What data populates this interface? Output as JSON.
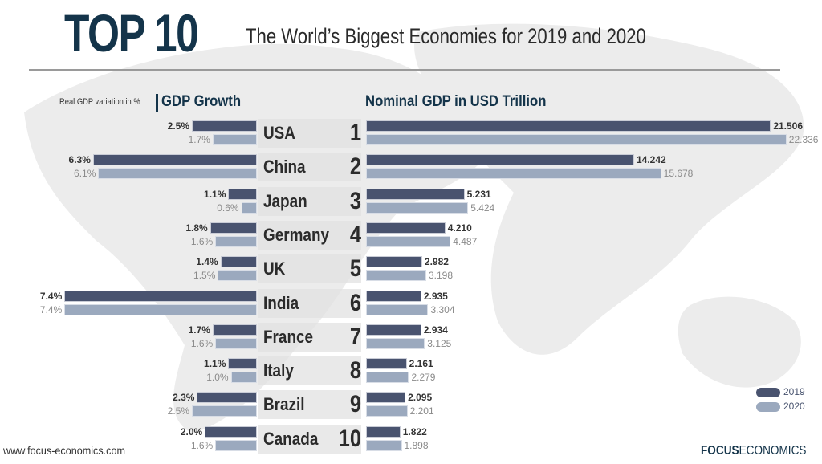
{
  "header": {
    "badge": "TOP 10",
    "subtitle": "The World’s Biggest Economies for 2019 and 2020"
  },
  "footer": {
    "url": "www.focus-economics.com",
    "logo_bold": "FOCUS",
    "logo_light": "ECONOMICS"
  },
  "colors": {
    "title": "#14344a",
    "series_2019": "#49536f",
    "series_2020": "#9ba9be"
  },
  "chart_data": [
    {
      "type": "bar",
      "orientation": "horizontal",
      "direction": "right-to-left",
      "title": "GDP Growth",
      "subtitle": "Real GDP variation in %",
      "unit": "%",
      "categories": [
        "USA",
        "China",
        "Japan",
        "Germany",
        "UK",
        "India",
        "France",
        "Italy",
        "Brazil",
        "Canada"
      ],
      "ranks": [
        "1",
        "2",
        "3",
        "4",
        "5",
        "6",
        "7",
        "8",
        "9",
        "10"
      ],
      "series": [
        {
          "name": "2019",
          "values": [
            2.5,
            6.3,
            1.1,
            1.8,
            1.4,
            7.4,
            1.7,
            1.1,
            2.3,
            2.0
          ],
          "labels": [
            "2.5%",
            "6.3%",
            "1.1%",
            "1.8%",
            "1.4%",
            "7.4%",
            "1.7%",
            "1.1%",
            "2.3%",
            "2.0%"
          ]
        },
        {
          "name": "2020",
          "values": [
            1.7,
            6.1,
            0.6,
            1.6,
            1.5,
            7.4,
            1.6,
            1.0,
            2.5,
            1.6
          ],
          "labels": [
            "1.7%",
            "6.1%",
            "0.6%",
            "1.6%",
            "1.5%",
            "7.4%",
            "1.6%",
            "1.0%",
            "2.5%",
            "1.6%"
          ]
        }
      ],
      "xlim": [
        0,
        7.4
      ],
      "grid": false
    },
    {
      "type": "bar",
      "orientation": "horizontal",
      "title": "Nominal GDP in USD Trillion",
      "unit": "USD trillion",
      "categories": [
        "USA",
        "China",
        "Japan",
        "Germany",
        "UK",
        "India",
        "France",
        "Italy",
        "Brazil",
        "Canada"
      ],
      "series": [
        {
          "name": "2019",
          "values": [
            21.506,
            14.242,
            5.231,
            4.21,
            2.982,
            2.935,
            2.934,
            2.161,
            2.095,
            1.822
          ],
          "labels": [
            "21.506",
            "14.242",
            "5.231",
            "4.210",
            "2.982",
            "2.935",
            "2.934",
            "2.161",
            "2.095",
            "1.822"
          ]
        },
        {
          "name": "2020",
          "values": [
            22.336,
            15.678,
            5.424,
            4.487,
            3.198,
            3.304,
            3.125,
            2.279,
            2.201,
            1.898
          ],
          "labels": [
            "22.336",
            "15.678",
            "5.424",
            "4.487",
            "3.198",
            "3.304",
            "3.125",
            "2.279",
            "2.201",
            "1.898"
          ]
        }
      ],
      "xlim": [
        0,
        22.336
      ],
      "grid": false,
      "legend": {
        "placement": "bottom-right",
        "entries": [
          "2019",
          "2020"
        ]
      }
    }
  ]
}
